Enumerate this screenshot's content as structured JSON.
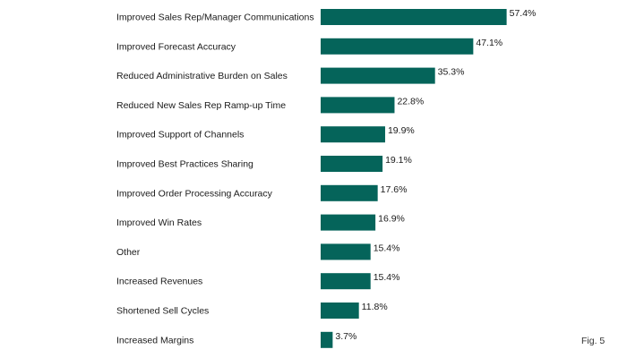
{
  "figure_label": "Fig. 5",
  "colors": {
    "bar": "#05645a",
    "text": "#1a1a1a"
  },
  "chart_data": {
    "type": "bar",
    "orientation": "horizontal",
    "categories": [
      "Improved Sales Rep/Manager Communications",
      "Improved Forecast Accuracy",
      "Reduced Administrative Burden on Sales",
      "Reduced New Sales Rep Ramp-up Time",
      "Improved Support of Channels",
      "Improved Best Practices Sharing",
      "Improved Order Processing Accuracy",
      "Improved Win Rates",
      "Other",
      "Increased Revenues",
      "Shortened Sell Cycles",
      "Increased Margins"
    ],
    "values": [
      57.4,
      47.1,
      35.3,
      22.8,
      19.9,
      19.1,
      17.6,
      16.9,
      15.4,
      15.4,
      11.8,
      3.7
    ],
    "value_labels": [
      "57.4%",
      "47.1%",
      "35.3%",
      "22.8%",
      "19.9%",
      "19.1%",
      "17.6%",
      "16.9%",
      "15.4%",
      "15.4%",
      "11.8%",
      "3.7%"
    ],
    "title": "",
    "xlabel": "",
    "ylabel": "",
    "xlim": [
      0,
      100
    ],
    "grid": false,
    "legend": "none"
  }
}
